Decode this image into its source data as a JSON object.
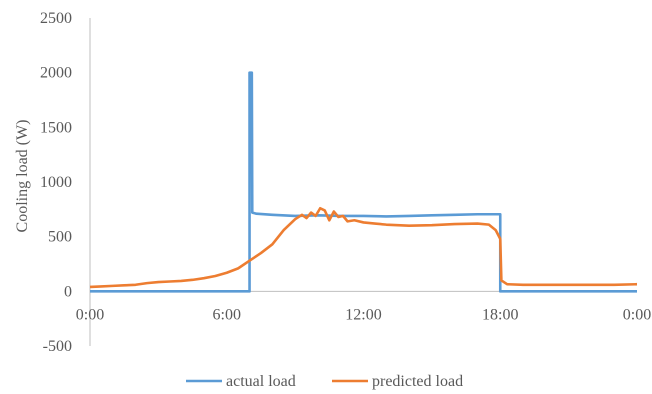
{
  "chart_data": {
    "type": "line",
    "title": "",
    "xlabel": "",
    "ylabel": "Cooling load (W)",
    "xlim": [
      0,
      24
    ],
    "ylim": [
      -500,
      2500
    ],
    "y_ticks": [
      -500,
      0,
      500,
      1000,
      1500,
      2000,
      2500
    ],
    "x_ticks": [
      0,
      6,
      12,
      18,
      24
    ],
    "x_tick_labels": [
      "0:00",
      "6:00",
      "12:00",
      "18:00",
      "0:00"
    ],
    "grid": false,
    "legend_position": "bottom",
    "series": [
      {
        "name": "actual load",
        "color": "#5b9bd5",
        "points": [
          [
            0,
            0
          ],
          [
            7.0,
            0
          ],
          [
            7.0,
            2000
          ],
          [
            7.08,
            2000
          ],
          [
            7.1,
            2000
          ],
          [
            7.12,
            720
          ],
          [
            7.3,
            710
          ],
          [
            8.0,
            700
          ],
          [
            9.0,
            690
          ],
          [
            10.0,
            695
          ],
          [
            11.0,
            690
          ],
          [
            12.0,
            690
          ],
          [
            13.0,
            685
          ],
          [
            14.0,
            690
          ],
          [
            15.0,
            695
          ],
          [
            16.0,
            700
          ],
          [
            17.0,
            705
          ],
          [
            18.0,
            705
          ],
          [
            18.0,
            0
          ],
          [
            24.0,
            0
          ]
        ]
      },
      {
        "name": "predicted load",
        "color": "#ed7d31",
        "points": [
          [
            0,
            40
          ],
          [
            0.5,
            45
          ],
          [
            1.0,
            50
          ],
          [
            1.5,
            55
          ],
          [
            2.0,
            60
          ],
          [
            2.5,
            75
          ],
          [
            3.0,
            85
          ],
          [
            3.5,
            90
          ],
          [
            4.0,
            95
          ],
          [
            4.5,
            105
          ],
          [
            5.0,
            120
          ],
          [
            5.5,
            140
          ],
          [
            6.0,
            170
          ],
          [
            6.5,
            210
          ],
          [
            7.0,
            280
          ],
          [
            7.5,
            350
          ],
          [
            8.0,
            430
          ],
          [
            8.5,
            560
          ],
          [
            9.0,
            660
          ],
          [
            9.3,
            700
          ],
          [
            9.5,
            670
          ],
          [
            9.7,
            720
          ],
          [
            9.9,
            690
          ],
          [
            10.1,
            760
          ],
          [
            10.3,
            740
          ],
          [
            10.5,
            650
          ],
          [
            10.7,
            730
          ],
          [
            10.9,
            680
          ],
          [
            11.1,
            690
          ],
          [
            11.3,
            640
          ],
          [
            11.6,
            650
          ],
          [
            12.0,
            630
          ],
          [
            12.5,
            620
          ],
          [
            13.0,
            610
          ],
          [
            14.0,
            600
          ],
          [
            15.0,
            605
          ],
          [
            16.0,
            615
          ],
          [
            17.0,
            620
          ],
          [
            17.5,
            610
          ],
          [
            17.8,
            560
          ],
          [
            18.0,
            480
          ],
          [
            18.05,
            100
          ],
          [
            18.3,
            65
          ],
          [
            19.0,
            60
          ],
          [
            20.0,
            60
          ],
          [
            21.0,
            60
          ],
          [
            22.0,
            60
          ],
          [
            23.0,
            60
          ],
          [
            24.0,
            65
          ]
        ]
      }
    ]
  }
}
